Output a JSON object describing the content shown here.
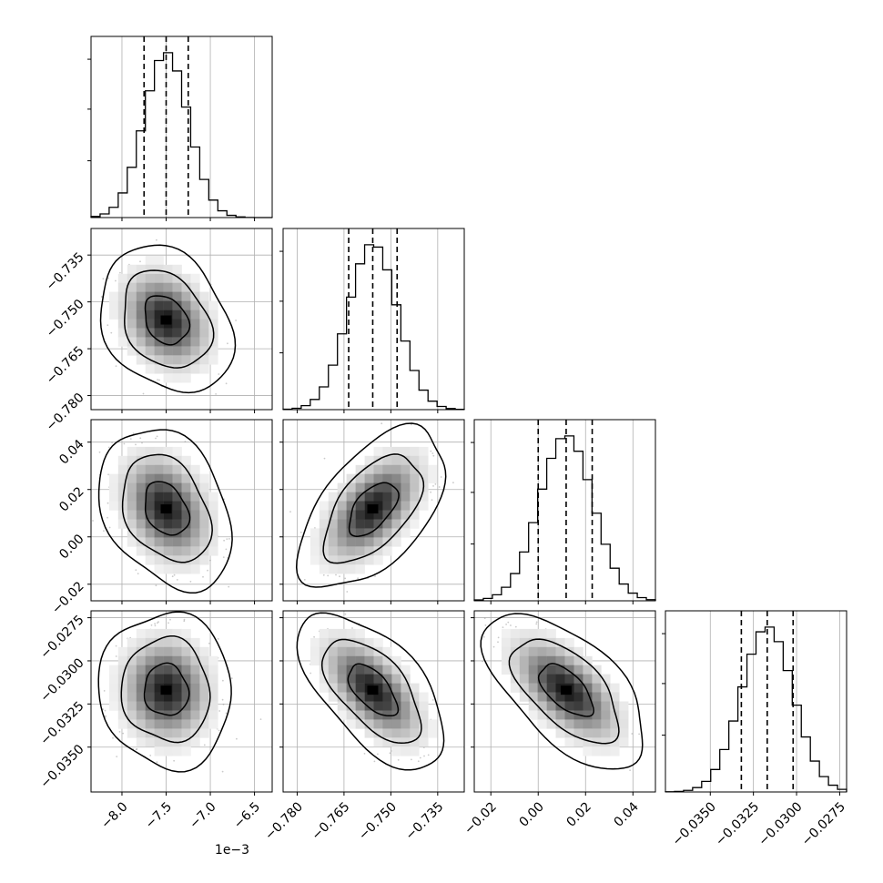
{
  "chart_data": {
    "type": "corner",
    "params": [
      {
        "ticks": [
          -8.0,
          -7.5,
          -7.0,
          -6.5
        ],
        "tick_labels": [
          "−8.0",
          "−7.5",
          "−7.0",
          "−6.5"
        ],
        "offset_label": "1e−3",
        "range": [
          -8.35,
          -6.3
        ],
        "quantiles": [
          -7.75,
          -7.5,
          -7.25
        ],
        "mean": -7.5,
        "sd": 0.25
      },
      {
        "ticks": [
          -0.78,
          -0.765,
          -0.75,
          -0.735
        ],
        "tick_labels": [
          "−0.780",
          "−0.765",
          "−0.750",
          "−0.735"
        ],
        "range": [
          -0.7845,
          -0.7265
        ],
        "quantiles": [
          -0.7635,
          -0.7558,
          -0.748
        ],
        "mean": -0.7558,
        "sd": 0.0078
      },
      {
        "ticks": [
          -0.02,
          0.0,
          0.02,
          0.04
        ],
        "tick_labels": [
          "−0.02",
          "0.00",
          "0.02",
          "0.04"
        ],
        "range": [
          -0.027,
          0.0495
        ],
        "quantiles": [
          0.0,
          0.0118,
          0.0228
        ],
        "mean": 0.0118,
        "sd": 0.0113
      },
      {
        "ticks": [
          -0.035,
          -0.0325,
          -0.03,
          -0.0275
        ],
        "tick_labels": [
          "−0.0350",
          "−0.0325",
          "−0.0300",
          "−0.0275"
        ],
        "range": [
          -0.0376,
          -0.0271
        ],
        "quantiles": [
          -0.0332,
          -0.0317,
          -0.0302
        ],
        "mean": -0.0317,
        "sd": 0.0015
      }
    ],
    "correlations": [
      {
        "i": 1,
        "j": 0,
        "rho": -0.25
      },
      {
        "i": 2,
        "j": 0,
        "rho": -0.3
      },
      {
        "i": 2,
        "j": 1,
        "rho": 0.55
      },
      {
        "i": 3,
        "j": 0,
        "rho": -0.05
      },
      {
        "i": 3,
        "j": 1,
        "rho": -0.6
      },
      {
        "i": 3,
        "j": 2,
        "rho": -0.6
      }
    ],
    "histogram_bins": 20,
    "grid": true,
    "contour_levels": [
      0.393,
      0.865,
      0.989
    ]
  }
}
